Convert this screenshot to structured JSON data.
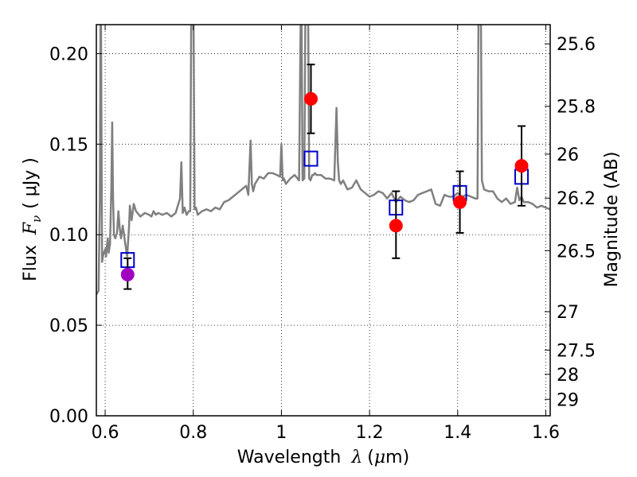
{
  "chart_data": {
    "type": "scatter",
    "xlabel": {
      "prefix": "Wavelength",
      "symbol": "λ",
      "unit_open": "(",
      "unit_mu": "μ",
      "unit_rest": "m)"
    },
    "ylabel": {
      "prefix": "Flux",
      "symbol_F": "F",
      "symbol_sub": "ν",
      "unit": "( μJy )"
    },
    "y2label": "Magnitude (AB)",
    "xlim": [
      0.58,
      1.61
    ],
    "ylim": [
      0.0,
      0.216
    ],
    "grid": true,
    "x_ticks": [
      {
        "value": 0.6,
        "label": "0.6"
      },
      {
        "value": 0.8,
        "label": "0.8"
      },
      {
        "value": 1.0,
        "label": "1"
      },
      {
        "value": 1.2,
        "label": "1.2"
      },
      {
        "value": 1.4,
        "label": "1.4"
      },
      {
        "value": 1.6,
        "label": "1.6"
      }
    ],
    "y_ticks": [
      {
        "value": 0.0,
        "label": "0.00"
      },
      {
        "value": 0.05,
        "label": "0.05"
      },
      {
        "value": 0.1,
        "label": "0.10"
      },
      {
        "value": 0.15,
        "label": "0.15"
      },
      {
        "value": 0.2,
        "label": "0.20"
      }
    ],
    "y2_ticks": [
      {
        "flux": 0.2054,
        "label": "25.6"
      },
      {
        "flux": 0.1709,
        "label": "25.8"
      },
      {
        "flux": 0.1445,
        "label": "26"
      },
      {
        "flux": 0.1202,
        "label": "26.2"
      },
      {
        "flux": 0.0912,
        "label": "26.5"
      },
      {
        "flux": 0.0575,
        "label": "27"
      },
      {
        "flux": 0.0363,
        "label": "27.5"
      },
      {
        "flux": 0.0229,
        "label": "28"
      },
      {
        "flux": 0.0091,
        "label": "29"
      }
    ],
    "colors": {
      "model": "#808080",
      "observed": "#ff0000",
      "observed_first": "#a000c0",
      "synthetic": "#0000cc",
      "errorbar": "#000000"
    },
    "model_spectrum": {
      "name": "",
      "x": [
        0.58,
        0.585,
        0.588,
        0.59,
        0.593,
        0.595,
        0.597,
        0.6,
        0.602,
        0.604,
        0.606,
        0.608,
        0.611,
        0.614,
        0.616,
        0.618,
        0.62,
        0.623,
        0.627,
        0.63,
        0.633,
        0.636,
        0.64,
        0.645,
        0.65,
        0.654,
        0.656,
        0.66,
        0.665,
        0.67,
        0.68,
        0.69,
        0.7,
        0.705,
        0.71,
        0.715,
        0.72,
        0.73,
        0.74,
        0.75,
        0.76,
        0.77,
        0.773,
        0.776,
        0.78,
        0.785,
        0.79,
        0.793,
        0.796,
        0.8,
        0.803,
        0.806,
        0.81,
        0.82,
        0.83,
        0.84,
        0.85,
        0.86,
        0.87,
        0.88,
        0.89,
        0.9,
        0.91,
        0.92,
        0.925,
        0.93,
        0.933,
        0.936,
        0.94,
        0.95,
        0.96,
        0.97,
        0.98,
        0.99,
        0.997,
        1.0,
        1.003,
        1.006,
        1.01,
        1.02,
        1.03,
        1.04,
        1.045,
        1.048,
        1.052,
        1.055,
        1.06,
        1.063,
        1.066,
        1.07,
        1.073,
        1.076,
        1.08,
        1.09,
        1.1,
        1.11,
        1.12,
        1.125,
        1.128,
        1.131,
        1.135,
        1.14,
        1.15,
        1.16,
        1.17,
        1.18,
        1.19,
        1.2,
        1.21,
        1.22,
        1.23,
        1.24,
        1.25,
        1.26,
        1.27,
        1.28,
        1.29,
        1.3,
        1.31,
        1.32,
        1.33,
        1.34,
        1.35,
        1.36,
        1.37,
        1.38,
        1.39,
        1.4,
        1.41,
        1.42,
        1.43,
        1.44,
        1.445,
        1.448,
        1.452,
        1.455,
        1.46,
        1.47,
        1.48,
        1.49,
        1.5,
        1.51,
        1.52,
        1.53,
        1.535,
        1.54,
        1.545,
        1.55,
        1.56,
        1.57,
        1.58,
        1.59,
        1.6,
        1.61
      ],
      "y": [
        0.067,
        0.069,
        0.12,
        0.25,
        0.085,
        0.088,
        0.09,
        0.092,
        0.088,
        0.094,
        0.098,
        0.09,
        0.095,
        0.125,
        0.162,
        0.12,
        0.1,
        0.098,
        0.101,
        0.113,
        0.104,
        0.098,
        0.105,
        0.096,
        0.088,
        0.104,
        0.116,
        0.108,
        0.117,
        0.113,
        0.11,
        0.112,
        0.111,
        0.11,
        0.113,
        0.111,
        0.112,
        0.111,
        0.112,
        0.11,
        0.112,
        0.12,
        0.14,
        0.112,
        0.115,
        0.111,
        0.113,
        0.113,
        0.25,
        0.25,
        0.114,
        0.115,
        0.111,
        0.113,
        0.114,
        0.113,
        0.115,
        0.114,
        0.118,
        0.119,
        0.121,
        0.123,
        0.125,
        0.127,
        0.122,
        0.152,
        0.128,
        0.124,
        0.128,
        0.132,
        0.131,
        0.134,
        0.134,
        0.133,
        0.132,
        0.15,
        0.13,
        0.131,
        0.128,
        0.131,
        0.133,
        0.13,
        0.25,
        0.13,
        0.131,
        0.25,
        0.25,
        0.131,
        0.13,
        0.133,
        0.133,
        0.134,
        0.133,
        0.133,
        0.131,
        0.131,
        0.13,
        0.17,
        0.14,
        0.13,
        0.128,
        0.13,
        0.125,
        0.126,
        0.13,
        0.125,
        0.123,
        0.121,
        0.122,
        0.124,
        0.123,
        0.12,
        0.123,
        0.118,
        0.121,
        0.119,
        0.118,
        0.119,
        0.122,
        0.123,
        0.124,
        0.125,
        0.117,
        0.116,
        0.122,
        0.121,
        0.121,
        0.123,
        0.121,
        0.122,
        0.121,
        0.12,
        0.12,
        0.25,
        0.25,
        0.13,
        0.125,
        0.124,
        0.124,
        0.12,
        0.118,
        0.12,
        0.117,
        0.118,
        0.126,
        0.119,
        0.121,
        0.118,
        0.118,
        0.117,
        0.115,
        0.116,
        0.115,
        0.114
      ]
    },
    "points": [
      {
        "x": 0.651,
        "flux": 0.078,
        "err_low": 0.07,
        "err_high": 0.087,
        "synthetic": 0.086,
        "kind": "observed_first"
      },
      {
        "x": 1.067,
        "flux": 0.175,
        "err_low": 0.156,
        "err_high": 0.194,
        "synthetic": 0.142,
        "kind": "observed"
      },
      {
        "x": 1.26,
        "flux": 0.105,
        "err_low": 0.087,
        "err_high": 0.124,
        "synthetic": 0.115,
        "kind": "observed"
      },
      {
        "x": 1.405,
        "flux": 0.118,
        "err_low": 0.101,
        "err_high": 0.135,
        "synthetic": 0.123,
        "kind": "observed"
      },
      {
        "x": 1.545,
        "flux": 0.138,
        "err_low": 0.116,
        "err_high": 0.16,
        "synthetic": 0.132,
        "kind": "observed"
      }
    ]
  }
}
